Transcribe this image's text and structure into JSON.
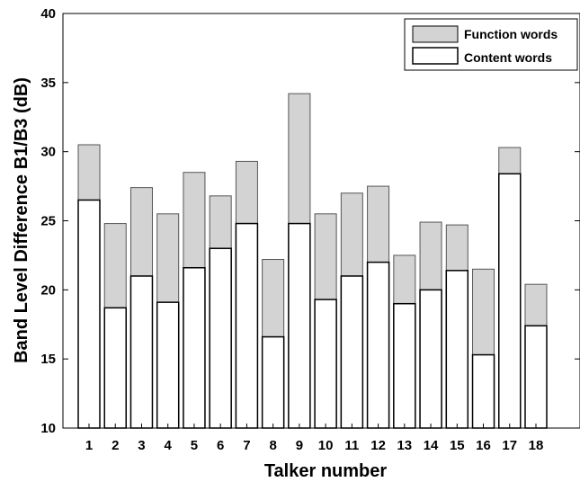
{
  "chart_data": {
    "type": "bar",
    "title": "",
    "xlabel": "Talker number",
    "ylabel": "Band Level Difference B1/B3 (dB)",
    "ylim": [
      10,
      40
    ],
    "yticks": [
      10,
      15,
      20,
      25,
      30,
      35,
      40
    ],
    "grid": false,
    "legend_position": "top-right",
    "categories": [
      "1",
      "2",
      "3",
      "4",
      "5",
      "6",
      "7",
      "8",
      "9",
      "10",
      "11",
      "12",
      "13",
      "14",
      "15",
      "16",
      "17",
      "18"
    ],
    "series": [
      {
        "name": "Function words",
        "color": "#d3d3d3",
        "values": [
          30.5,
          24.8,
          27.4,
          25.5,
          28.5,
          26.8,
          29.3,
          22.2,
          34.2,
          25.5,
          27.0,
          27.5,
          22.5,
          24.9,
          24.7,
          21.5,
          30.3,
          20.4
        ]
      },
      {
        "name": "Content words",
        "color": "#ffffff",
        "values": [
          26.5,
          18.7,
          21.0,
          19.1,
          21.6,
          23.0,
          24.8,
          16.6,
          24.8,
          19.3,
          21.0,
          22.0,
          19.0,
          20.0,
          21.4,
          15.3,
          28.4,
          17.4
        ]
      }
    ]
  }
}
